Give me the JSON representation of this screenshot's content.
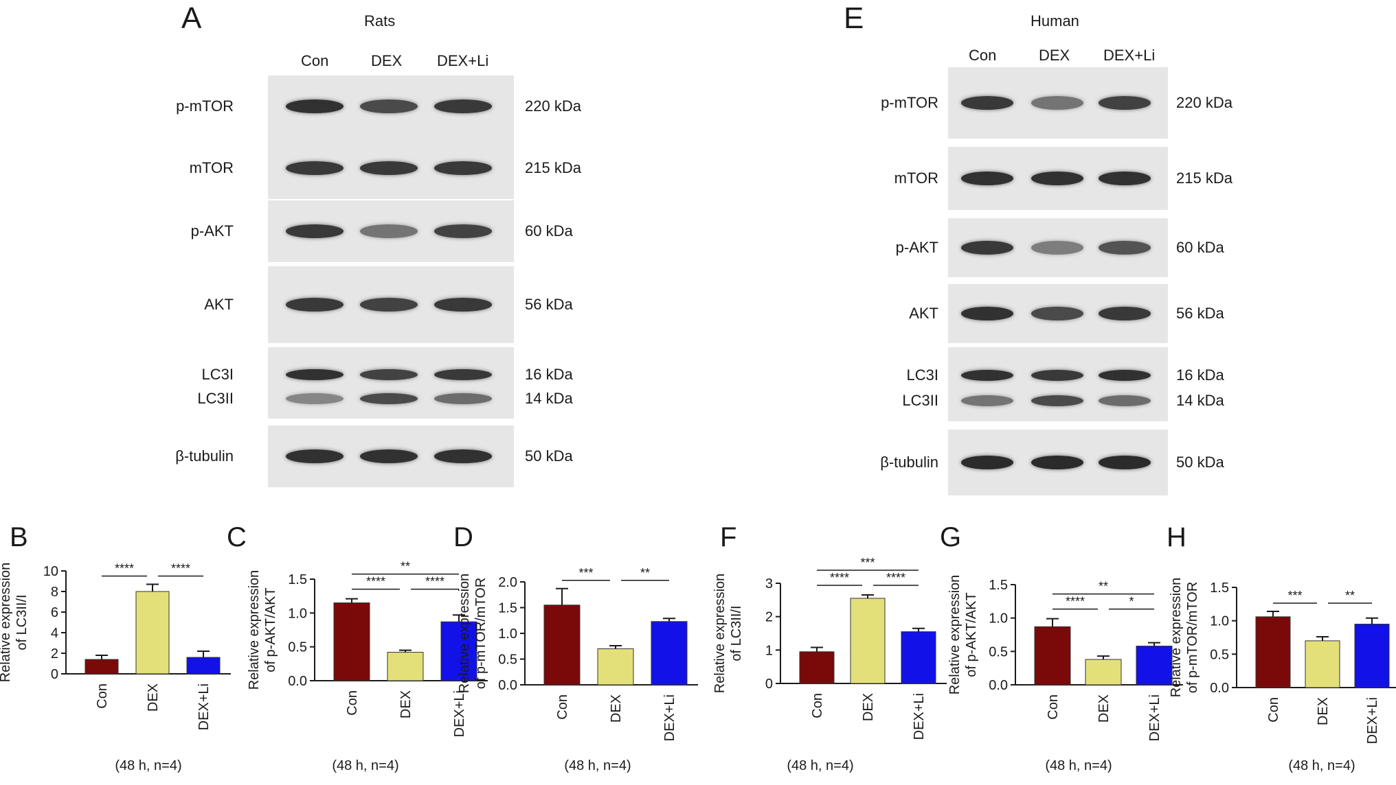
{
  "panels": {
    "A": {
      "letter": "A",
      "species": "Rats",
      "lanes": [
        "Con",
        "DEX",
        "DEX+Li"
      ],
      "blots": [
        {
          "proteins": [
            "p-mTOR"
          ],
          "kda": [
            "220 kDa"
          ],
          "intensity": [
            [
              0.95,
              0.8,
              0.9
            ]
          ]
        },
        {
          "proteins": [
            "mTOR"
          ],
          "kda": [
            "215 kDa"
          ],
          "intensity": [
            [
              0.9,
              0.9,
              0.9
            ]
          ]
        },
        {
          "proteins": [
            "p-AKT"
          ],
          "kda": [
            "60 kDa"
          ],
          "intensity": [
            [
              0.9,
              0.55,
              0.85
            ]
          ]
        },
        {
          "proteins": [
            "AKT"
          ],
          "kda": [
            "56 kDa"
          ],
          "intensity": [
            [
              0.9,
              0.85,
              0.9
            ]
          ]
        },
        {
          "proteins": [
            "LC3I",
            "LC3II"
          ],
          "kda": [
            "16 kDa",
            "14 kDa"
          ],
          "intensity": [
            [
              0.95,
              0.85,
              0.9
            ],
            [
              0.45,
              0.8,
              0.6
            ]
          ]
        },
        {
          "proteins": [
            "β-tubulin"
          ],
          "kda": [
            "50 kDa"
          ],
          "intensity": [
            [
              0.95,
              0.95,
              0.95
            ]
          ]
        }
      ]
    },
    "E": {
      "letter": "E",
      "species": "Human",
      "lanes": [
        "Con",
        "DEX",
        "DEX+Li"
      ],
      "blots": [
        {
          "proteins": [
            "p-mTOR"
          ],
          "kda": [
            "220 kDa"
          ],
          "intensity": [
            [
              0.9,
              0.55,
              0.85
            ]
          ]
        },
        {
          "proteins": [
            "mTOR"
          ],
          "kda": [
            "215 kDa"
          ],
          "intensity": [
            [
              0.95,
              0.95,
              0.95
            ]
          ]
        },
        {
          "proteins": [
            "p-AKT"
          ],
          "kda": [
            "60 kDa"
          ],
          "intensity": [
            [
              0.9,
              0.5,
              0.75
            ]
          ]
        },
        {
          "proteins": [
            "AKT"
          ],
          "kda": [
            "56 kDa"
          ],
          "intensity": [
            [
              0.95,
              0.8,
              0.9
            ]
          ]
        },
        {
          "proteins": [
            "LC3I",
            "LC3II"
          ],
          "kda": [
            "16 kDa",
            "14 kDa"
          ],
          "intensity": [
            [
              0.95,
              0.9,
              0.95
            ],
            [
              0.55,
              0.8,
              0.6
            ]
          ]
        },
        {
          "proteins": [
            "β-tubulin"
          ],
          "kda": [
            "50 kDa"
          ],
          "intensity": [
            [
              0.98,
              0.98,
              0.98
            ]
          ]
        }
      ]
    }
  },
  "colors": {
    "con": "#7a0a0a",
    "dex": "#e3e07a",
    "dexli": "#1212e8"
  },
  "chart_data": [
    {
      "panel": "B",
      "type": "bar",
      "categories": [
        "Con",
        "DEX",
        "DEX+Li"
      ],
      "values": [
        1.4,
        8.0,
        1.6
      ],
      "errors": [
        0.4,
        0.7,
        0.6
      ],
      "ylabel": "Relative expression of LC3II/I",
      "ylim": [
        0,
        10
      ],
      "yticks": [
        0,
        2,
        4,
        6,
        8,
        10
      ],
      "tick_labels": [
        "0",
        "2",
        "4",
        "6",
        "8",
        "10"
      ],
      "significance": [
        {
          "from": 0,
          "to": 1,
          "label": "****"
        },
        {
          "from": 1,
          "to": 2,
          "label": "****"
        }
      ],
      "note": "(48 h, n=4)"
    },
    {
      "panel": "C",
      "type": "bar",
      "categories": [
        "Con",
        "DEX",
        "DEX+Li"
      ],
      "values": [
        1.15,
        0.42,
        0.87
      ],
      "errors": [
        0.06,
        0.03,
        0.1
      ],
      "ylabel": "Relative expression of p-AKT/AKT",
      "ylim": [
        0,
        1.5
      ],
      "yticks": [
        0,
        0.5,
        1.0,
        1.5
      ],
      "tick_labels": [
        "0.0",
        "0.5",
        "1.0",
        "1.5"
      ],
      "significance": [
        {
          "from": 0,
          "to": 1,
          "label": "****"
        },
        {
          "from": 1,
          "to": 2,
          "label": "****"
        },
        {
          "from": 0,
          "to": 2,
          "label": "**"
        }
      ],
      "note": "(48 h, n=4)"
    },
    {
      "panel": "D",
      "type": "bar",
      "categories": [
        "Con",
        "DEX",
        "DEX+Li"
      ],
      "values": [
        1.55,
        0.7,
        1.23
      ],
      "errors": [
        0.32,
        0.06,
        0.06
      ],
      "ylabel": "Relative expression of p-mTOR/mTOR",
      "ylim": [
        0,
        2.0
      ],
      "yticks": [
        0,
        0.5,
        1.0,
        1.5,
        2.0
      ],
      "tick_labels": [
        "0.0",
        "0.5",
        "1.0",
        "1.5",
        "2.0"
      ],
      "significance": [
        {
          "from": 0,
          "to": 1,
          "label": "***"
        },
        {
          "from": 1,
          "to": 2,
          "label": "**"
        }
      ],
      "note": "(48 h, n=4)"
    },
    {
      "panel": "F",
      "type": "bar",
      "categories": [
        "Con",
        "DEX",
        "DEX+Li"
      ],
      "values": [
        0.95,
        2.55,
        1.55
      ],
      "errors": [
        0.13,
        0.1,
        0.1
      ],
      "ylabel": "Relative expression of LC3II/I",
      "ylim": [
        0,
        3
      ],
      "yticks": [
        0,
        1,
        2,
        3
      ],
      "tick_labels": [
        "0",
        "1",
        "2",
        "3"
      ],
      "significance": [
        {
          "from": 0,
          "to": 1,
          "label": "****"
        },
        {
          "from": 1,
          "to": 2,
          "label": "****"
        },
        {
          "from": 0,
          "to": 2,
          "label": "***"
        }
      ],
      "note": "(48 h, n=4)"
    },
    {
      "panel": "G",
      "type": "bar",
      "categories": [
        "Con",
        "DEX",
        "DEX+Li"
      ],
      "values": [
        0.87,
        0.38,
        0.58
      ],
      "errors": [
        0.12,
        0.05,
        0.05
      ],
      "ylabel": "Relative expression of p-AKT/AKT",
      "ylim": [
        0,
        1.5
      ],
      "yticks": [
        0,
        0.5,
        1.0,
        1.5
      ],
      "tick_labels": [
        "0.0",
        "0.5",
        "1.0",
        "1.5"
      ],
      "significance": [
        {
          "from": 0,
          "to": 1,
          "label": "****"
        },
        {
          "from": 1,
          "to": 2,
          "label": "*"
        },
        {
          "from": 0,
          "to": 2,
          "label": "**"
        }
      ],
      "note": "(48 h, n=4)"
    },
    {
      "panel": "H",
      "type": "bar",
      "categories": [
        "Con",
        "DEX",
        "DEX+Li"
      ],
      "values": [
        1.06,
        0.7,
        0.95
      ],
      "errors": [
        0.08,
        0.06,
        0.09
      ],
      "ylabel": "Relative expression of p-mTOR/mTOR",
      "ylim": [
        0,
        1.5
      ],
      "yticks": [
        0,
        0.5,
        1.0,
        1.5
      ],
      "tick_labels": [
        "0.0",
        "0.5",
        "1.0",
        "1.5"
      ],
      "significance": [
        {
          "from": 0,
          "to": 1,
          "label": "***"
        },
        {
          "from": 1,
          "to": 2,
          "label": "**"
        }
      ],
      "note": "(48 h, n=4)"
    }
  ]
}
